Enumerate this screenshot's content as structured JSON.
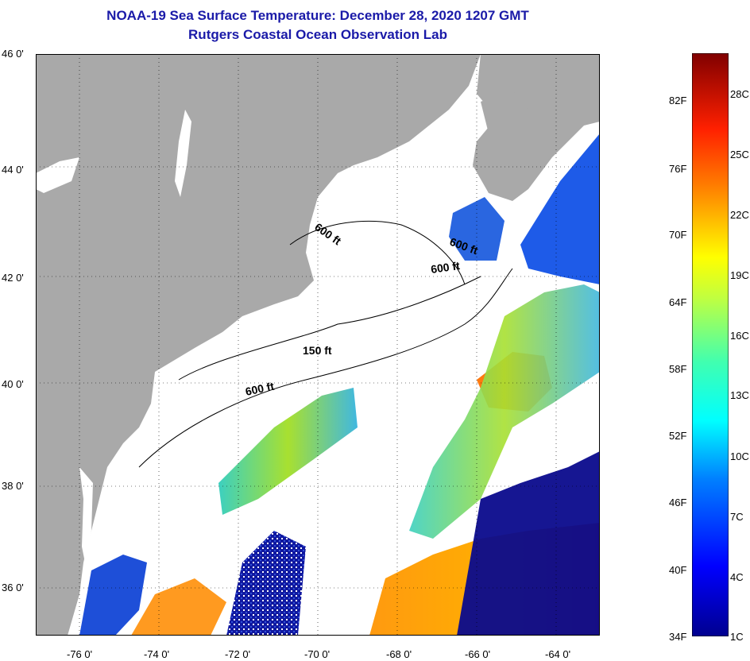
{
  "header": {
    "title": "NOAA-19 Sea Surface Temperature:  December 28, 2020 1207 GMT",
    "subtitle": "Rutgers Coastal Ocean Observation Lab"
  },
  "axes": {
    "lat_labels": [
      "46 0'",
      "44 0'",
      "42 0'",
      "40 0'",
      "38 0'",
      "36 0'"
    ],
    "lon_labels": [
      "-76 0'",
      "-74 0'",
      "-72 0'",
      "-70 0'",
      "-68 0'",
      "-66 0'",
      "-64 0'"
    ]
  },
  "contour_labels": {
    "a": "600 ft",
    "b": "600 ft",
    "c": "600 ft",
    "d": "150 ft",
    "e": "600 ft"
  },
  "colorbar": {
    "fahrenheit": [
      "82F",
      "76F",
      "70F",
      "64F",
      "58F",
      "52F",
      "46F",
      "40F",
      "34F"
    ],
    "celsius": [
      "28C",
      "25C",
      "22C",
      "19C",
      "16C",
      "13C",
      "10C",
      "7C",
      "4C",
      "1C"
    ],
    "min": "1C",
    "max": "30C"
  },
  "colors": {
    "land": "#a9a9a9",
    "cloud": "#ffffff",
    "title": "#1a1aa8",
    "cold": "#0a0a8c",
    "warm": "#ff8a00",
    "hot": "#7a0000"
  }
}
